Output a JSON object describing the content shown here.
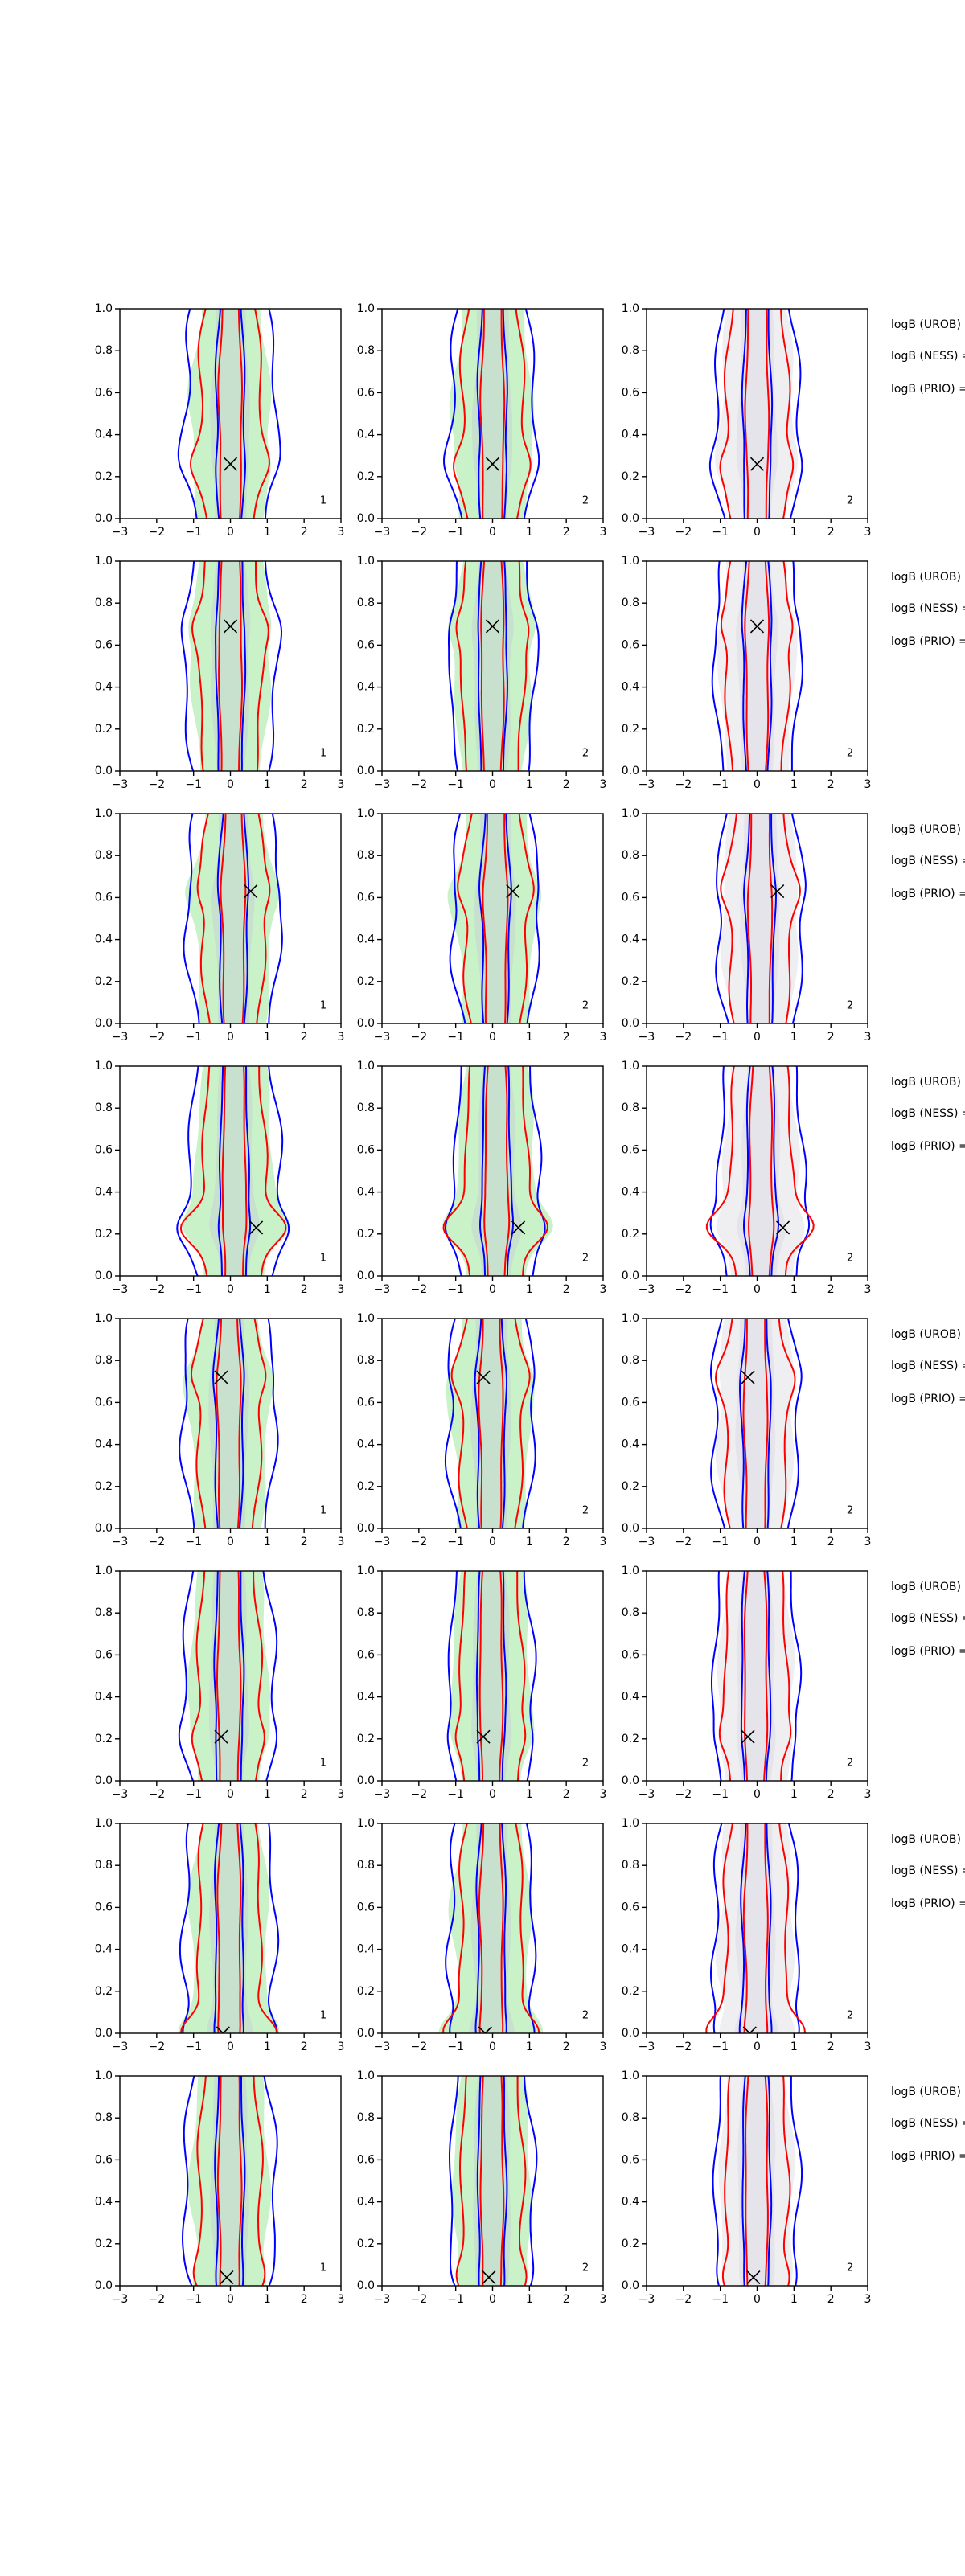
{
  "axes": {
    "xlim": [
      -3,
      3
    ],
    "xticks": [
      {
        "value": -3,
        "label": "−3"
      },
      {
        "value": -2,
        "label": "−2"
      },
      {
        "value": -1,
        "label": "−1"
      },
      0,
      1,
      2,
      3
    ],
    "ylim": [
      0,
      1
    ],
    "yticks": [
      {
        "value": 0,
        "label": "0.0"
      },
      {
        "value": 0.2,
        "label": "0.2"
      },
      {
        "value": 0.4,
        "label": "0.4"
      },
      {
        "value": 0.6,
        "label": "0.6"
      },
      {
        "value": 0.8,
        "label": "0.8"
      },
      {
        "value": 1,
        "label": "1.0"
      }
    ]
  },
  "side_labels": [
    "logB (UROB) =",
    "logB (NESS) =",
    "logB (PRIO) ="
  ],
  "chart_data": [
    {
      "type": "contour",
      "x": [
        0
      ],
      "y": [
        0.26
      ],
      "annotation": "1"
    },
    {
      "type": "contour",
      "x": [
        0
      ],
      "y": [
        0.26
      ],
      "annotation": "2"
    },
    {
      "type": "contour",
      "x": [
        0
      ],
      "y": [
        0.26
      ],
      "annotation": "2"
    },
    {
      "type": "contour",
      "x": [
        0
      ],
      "y": [
        0.69
      ],
      "annotation": "1"
    },
    {
      "type": "contour",
      "x": [
        0
      ],
      "y": [
        0.69
      ],
      "annotation": "2"
    },
    {
      "type": "contour",
      "x": [
        0
      ],
      "y": [
        0.69
      ],
      "annotation": "2"
    },
    {
      "type": "contour",
      "x": [
        0.55
      ],
      "y": [
        0.63
      ],
      "annotation": "1"
    },
    {
      "type": "contour",
      "x": [
        0.55
      ],
      "y": [
        0.63
      ],
      "annotation": "2"
    },
    {
      "type": "contour",
      "x": [
        0.55
      ],
      "y": [
        0.63
      ],
      "annotation": "2"
    },
    {
      "type": "contour",
      "x": [
        0.7
      ],
      "y": [
        0.23
      ],
      "annotation": "1"
    },
    {
      "type": "contour",
      "x": [
        0.7
      ],
      "y": [
        0.23
      ],
      "annotation": "2"
    },
    {
      "type": "contour",
      "x": [
        0.7
      ],
      "y": [
        0.23
      ],
      "annotation": "2"
    },
    {
      "type": "contour",
      "x": [
        -0.25
      ],
      "y": [
        0.72
      ],
      "annotation": "1"
    },
    {
      "type": "contour",
      "x": [
        -0.25
      ],
      "y": [
        0.72
      ],
      "annotation": "2"
    },
    {
      "type": "contour",
      "x": [
        -0.25
      ],
      "y": [
        0.72
      ],
      "annotation": "2"
    },
    {
      "type": "contour",
      "x": [
        -0.25
      ],
      "y": [
        0.21
      ],
      "annotation": "1"
    },
    {
      "type": "contour",
      "x": [
        -0.25
      ],
      "y": [
        0.21
      ],
      "annotation": "2"
    },
    {
      "type": "contour",
      "x": [
        -0.25
      ],
      "y": [
        0.21
      ],
      "annotation": "2"
    },
    {
      "type": "contour",
      "x": [
        -0.2
      ],
      "y": [
        0.0
      ],
      "annotation": "1"
    },
    {
      "type": "contour",
      "x": [
        -0.2
      ],
      "y": [
        0.0
      ],
      "annotation": "2"
    },
    {
      "type": "contour",
      "x": [
        -0.2
      ],
      "y": [
        0.0
      ],
      "annotation": "2"
    },
    {
      "type": "contour",
      "x": [
        -0.1
      ],
      "y": [
        0.04
      ],
      "annotation": "1"
    },
    {
      "type": "contour",
      "x": [
        -0.1
      ],
      "y": [
        0.04
      ],
      "annotation": "2"
    },
    {
      "type": "contour",
      "x": [
        -0.1
      ],
      "y": [
        0.04
      ],
      "annotation": "2"
    }
  ]
}
